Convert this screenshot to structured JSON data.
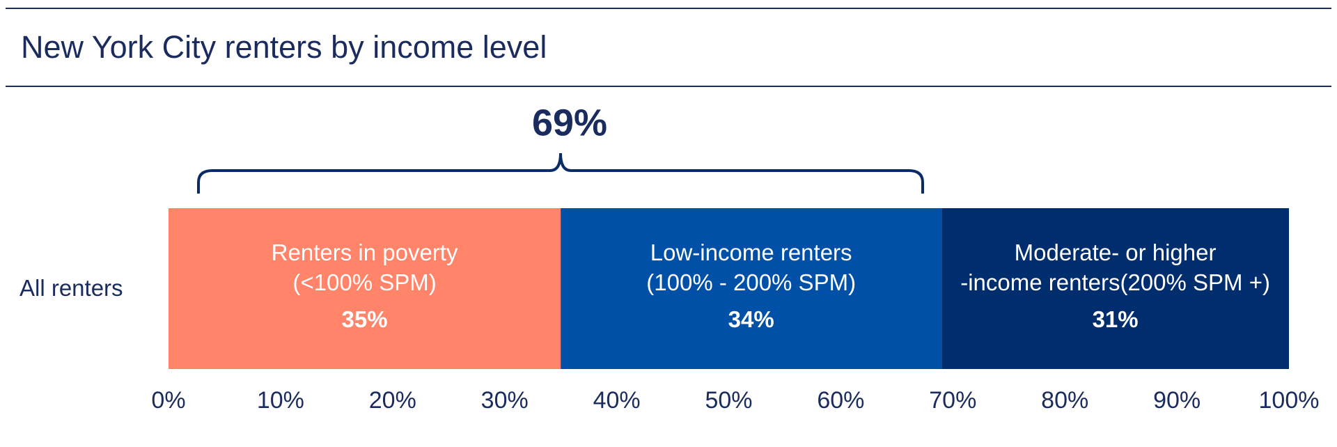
{
  "chart_data": {
    "type": "stacked-bar-horizontal",
    "title": "New York City renters by income level",
    "annotation": "69%",
    "categories": [
      "All renters"
    ],
    "series": [
      {
        "name": "Renters in poverty\n(<100% SPM)",
        "color": "#ff8469",
        "values": [
          35
        ],
        "value_labels": [
          "35%"
        ]
      },
      {
        "name": "Low-income renters\n(100% - 200% SPM)",
        "color": "#0050a8",
        "values": [
          34
        ],
        "value_labels": [
          "34%"
        ]
      },
      {
        "name": "Moderate- or higher\n-income renters(200% SPM +)",
        "color": "#002d6e",
        "values": [
          31
        ],
        "value_labels": [
          "31%"
        ]
      }
    ],
    "xlim": [
      0,
      100
    ],
    "xticks": [
      {
        "value": 0,
        "label": "0%"
      },
      {
        "value": 10,
        "label": "10%"
      },
      {
        "value": 20,
        "label": "20%"
      },
      {
        "value": 30,
        "label": "30%"
      },
      {
        "value": 40,
        "label": "40%"
      },
      {
        "value": 50,
        "label": "50%"
      },
      {
        "value": 60,
        "label": "60%"
      },
      {
        "value": 70,
        "label": "70%"
      },
      {
        "value": 80,
        "label": "80%"
      },
      {
        "value": 90,
        "label": "90%"
      },
      {
        "value": 100,
        "label": "100%"
      }
    ]
  }
}
